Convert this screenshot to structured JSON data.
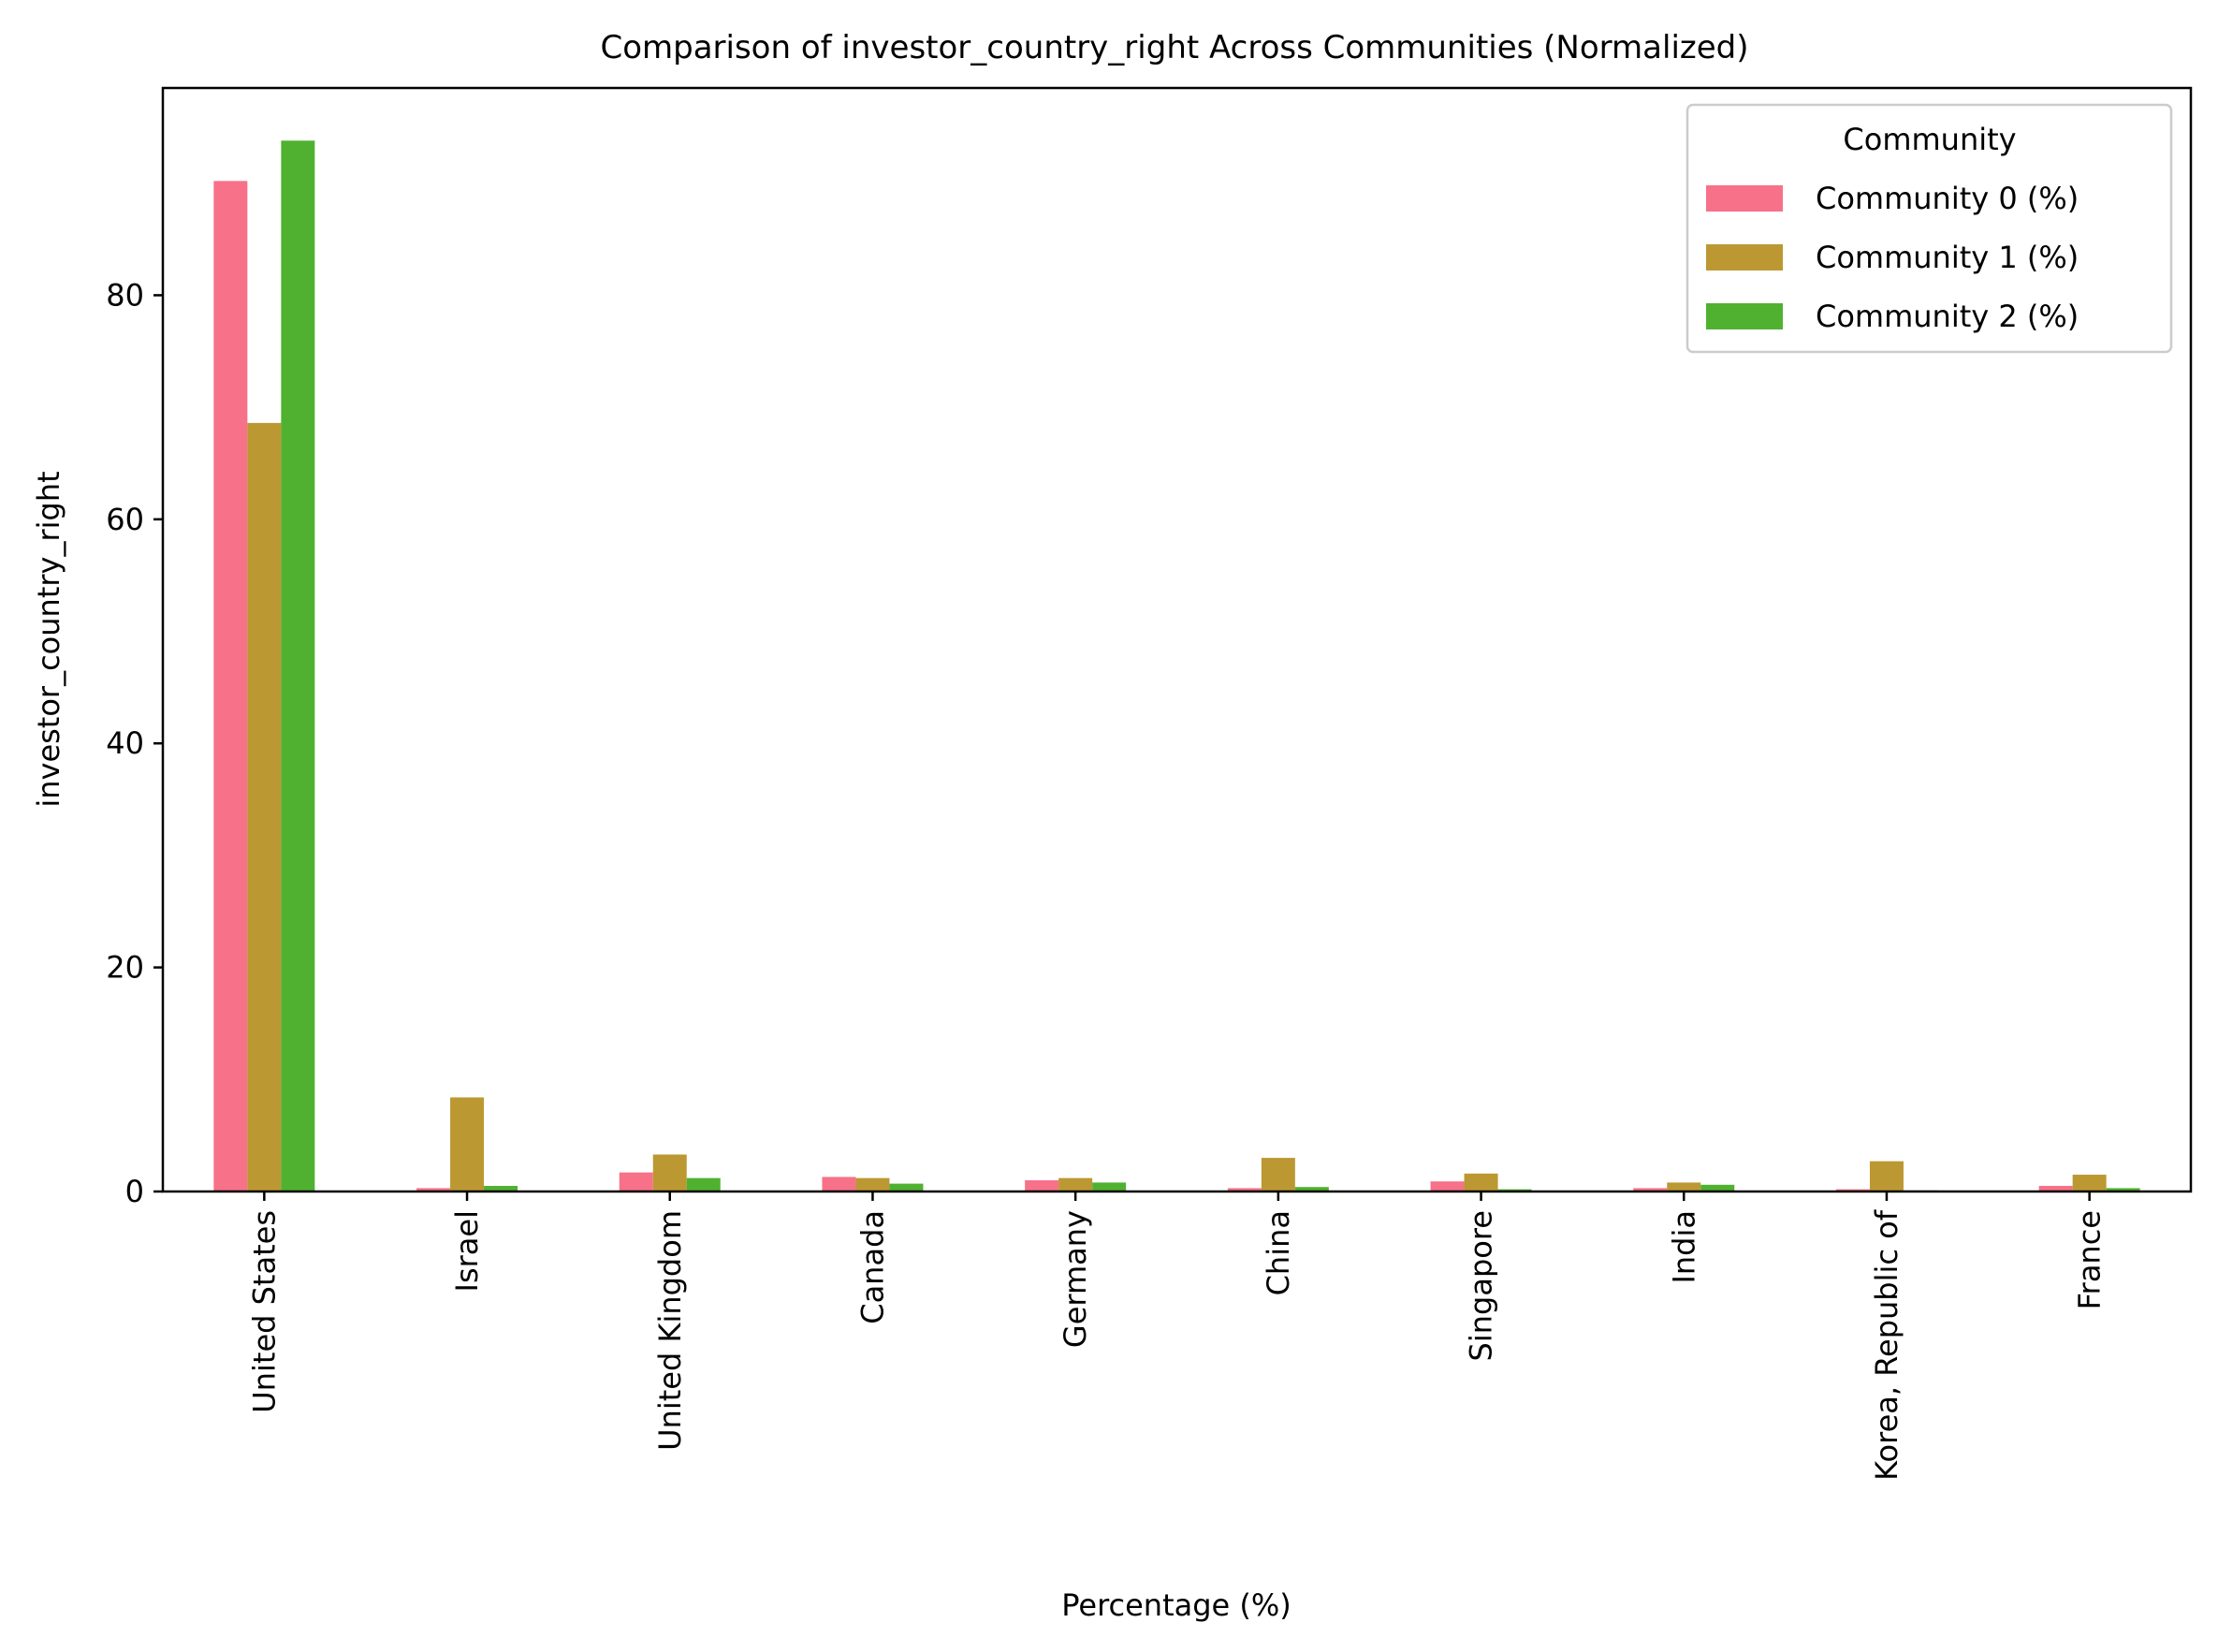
{
  "chart_data": {
    "type": "bar",
    "title": "Comparison of investor_country_right Across Communities (Normalized)",
    "xlabel": "Percentage (%)",
    "ylabel": "investor_country_right",
    "ylim": [
      0,
      98.5
    ],
    "yticks": [
      0,
      20,
      40,
      60,
      80
    ],
    "grid": false,
    "legend": {
      "title": "Community",
      "placement": "top-right"
    },
    "categories": [
      "United States",
      "Israel",
      "United Kingdom",
      "Canada",
      "Germany",
      "China",
      "Singapore",
      "India",
      "Korea, Republic of",
      "France"
    ],
    "series": [
      {
        "name": "Community 0 (%)",
        "color": "#f77189",
        "values": [
          90.2,
          0.3,
          1.7,
          1.3,
          1.0,
          0.3,
          0.9,
          0.3,
          0.2,
          0.5
        ]
      },
      {
        "name": "Community 1 (%)",
        "color": "#bb9832",
        "values": [
          68.6,
          8.4,
          3.3,
          1.2,
          1.2,
          3.0,
          1.6,
          0.8,
          2.7,
          1.5
        ]
      },
      {
        "name": "Community 2 (%)",
        "color": "#50b131",
        "values": [
          93.8,
          0.5,
          1.2,
          0.7,
          0.8,
          0.4,
          0.2,
          0.6,
          0.1,
          0.3
        ]
      }
    ]
  }
}
